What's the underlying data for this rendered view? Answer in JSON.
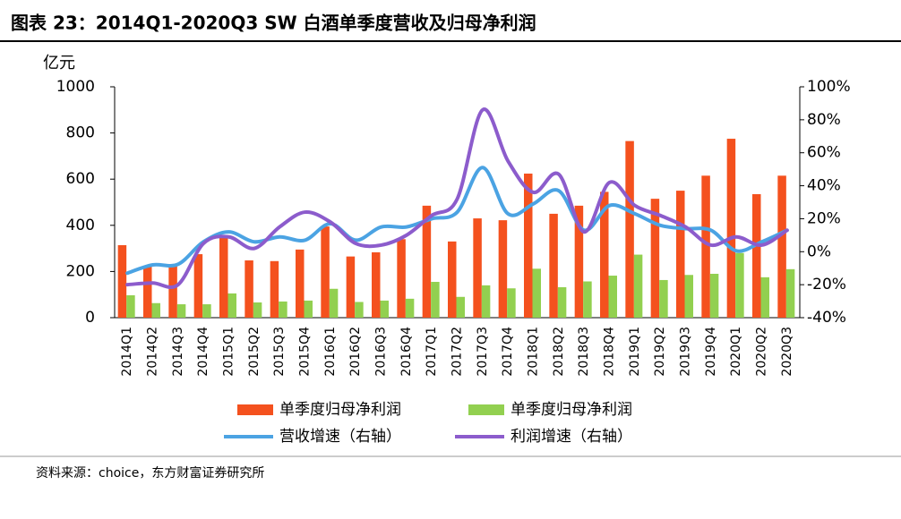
{
  "chart_data": {
    "type": "bar_line",
    "title": "图表 23：2014Q1-2020Q3 SW 白酒单季度营收及归母净利润",
    "ylabel": "亿元",
    "source": "资料来源：choice，东方财富证券研究所",
    "categories": [
      "2014Q1",
      "2014Q2",
      "2014Q3",
      "2014Q4",
      "2015Q1",
      "2015Q2",
      "2015Q3",
      "2015Q4",
      "2016Q1",
      "2016Q2",
      "2016Q3",
      "2016Q4",
      "2017Q1",
      "2017Q2",
      "2017Q3",
      "2017Q4",
      "2018Q1",
      "2018Q2",
      "2018Q3",
      "2018Q4",
      "2019Q1",
      "2019Q2",
      "2019Q3",
      "2019Q4",
      "2020Q1",
      "2020Q2",
      "2020Q3"
    ],
    "series": [
      {
        "name": "单季度归母净利润",
        "type": "bar",
        "color": "#f4511e",
        "values": [
          314,
          221,
          225,
          275,
          350,
          248,
          245,
          295,
          395,
          265,
          283,
          340,
          485,
          330,
          430,
          422,
          624,
          450,
          485,
          545,
          765,
          515,
          550,
          615,
          775,
          535,
          615
        ]
      },
      {
        "name": "单季度归母净利润",
        "type": "bar",
        "color": "#92d050",
        "values": [
          97,
          63,
          58,
          58,
          105,
          66,
          70,
          74,
          125,
          68,
          74,
          82,
          155,
          90,
          140,
          127,
          212,
          132,
          157,
          182,
          273,
          163,
          185,
          190,
          280,
          175,
          210
        ]
      },
      {
        "name": "营收增速（右轴）",
        "type": "line",
        "axis": "y2",
        "color": "#4ba3e3",
        "values": [
          -13,
          -8,
          -7.6,
          6,
          12,
          6,
          9,
          7,
          17,
          7,
          15,
          15,
          20,
          24,
          51,
          23,
          29,
          37,
          13,
          28,
          23,
          16,
          14,
          13,
          0.5,
          6,
          13
        ]
      },
      {
        "name": "利润增速（右轴）",
        "type": "line",
        "axis": "y2",
        "color": "#8c5ccc",
        "values": [
          -20,
          -19,
          -20,
          5,
          9,
          2,
          15,
          24,
          18,
          5,
          4,
          10,
          22,
          32,
          86,
          55,
          36,
          47,
          12,
          42,
          28,
          22,
          15,
          4,
          9,
          4,
          13
        ]
      }
    ],
    "ylim": [
      0,
      1000
    ],
    "yticks": [
      0,
      200,
      400,
      600,
      800,
      1000
    ],
    "y2lim": [
      -40,
      100
    ],
    "y2ticks": [
      {
        "value": -40,
        "label": "-40%"
      },
      {
        "value": -20,
        "label": "-20%"
      },
      {
        "value": 0,
        "label": "0%"
      },
      {
        "value": 20,
        "label": "20%"
      },
      {
        "value": 40,
        "label": "40%"
      },
      {
        "value": 60,
        "label": "60%"
      },
      {
        "value": 80,
        "label": "80%"
      },
      {
        "value": 100,
        "label": "100%"
      }
    ],
    "grid": false
  }
}
